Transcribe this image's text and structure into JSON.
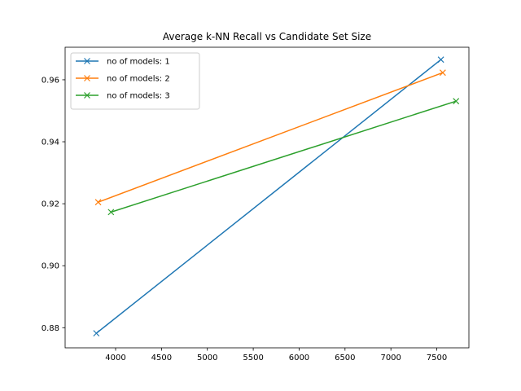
{
  "chart_data": {
    "type": "line",
    "title": "Average k-NN Recall vs Candidate Set Size",
    "xlabel": "",
    "ylabel": "",
    "xlim": [
      3450,
      7850
    ],
    "ylim": [
      0.8735,
      0.9705
    ],
    "xticks": [
      4000,
      4500,
      5000,
      5500,
      6000,
      6500,
      7000,
      7500
    ],
    "yticks": [
      0.88,
      0.9,
      0.92,
      0.94,
      0.96
    ],
    "xtick_labels": [
      "4000",
      "4500",
      "5000",
      "5500",
      "6000",
      "6500",
      "7000",
      "7500"
    ],
    "ytick_labels": [
      "0.88",
      "0.90",
      "0.92",
      "0.94",
      "0.96"
    ],
    "grid": false,
    "legend_position": "upper-left",
    "marker": "x",
    "series": [
      {
        "name": "no of models: 1",
        "color": "#1f77b4",
        "x": [
          3790,
          7545
        ],
        "y": [
          0.8782,
          0.9665
        ]
      },
      {
        "name": "no of models: 2",
        "color": "#ff7f0e",
        "x": [
          3810,
          7565
        ],
        "y": [
          0.9205,
          0.9623
        ]
      },
      {
        "name": "no of models: 3",
        "color": "#2ca02c",
        "x": [
          3950,
          7710
        ],
        "y": [
          0.9173,
          0.9531
        ]
      }
    ]
  }
}
